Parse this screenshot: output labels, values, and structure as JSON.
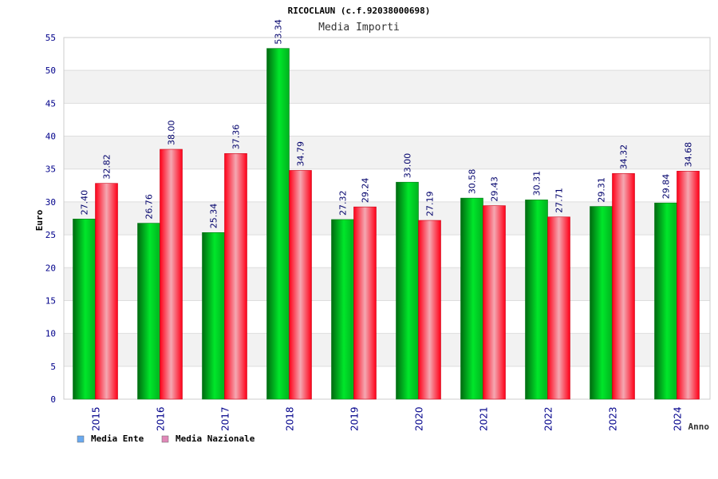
{
  "chart_data": {
    "type": "bar",
    "title": "RICOCLAUN (c.f.92038000698)",
    "subtitle": "Media Importi",
    "xlabel": "Anno",
    "ylabel": "Euro",
    "ylim": [
      0,
      55
    ],
    "yticks": [
      "0",
      "5",
      "10",
      "15",
      "20",
      "25",
      "30",
      "35",
      "40",
      "45",
      "50",
      "55"
    ],
    "categories": [
      "2015",
      "2016",
      "2017",
      "2018",
      "2019",
      "2020",
      "2021",
      "2022",
      "2023",
      "2024"
    ],
    "series": [
      {
        "name": "Media Ente",
        "values": [
          27.4,
          26.76,
          25.34,
          53.34,
          27.32,
          33.0,
          30.58,
          30.31,
          29.31,
          29.84
        ],
        "labels": [
          "27.40",
          "26.76",
          "25.34",
          "53.34",
          "27.32",
          "33.00",
          "30.58",
          "30.31",
          "29.31",
          "29.84"
        ],
        "color": "#00cc22"
      },
      {
        "name": "Media Nazionale",
        "values": [
          32.82,
          38.0,
          37.36,
          34.79,
          29.24,
          27.19,
          29.43,
          27.71,
          34.32,
          34.68
        ],
        "labels": [
          "32.82",
          "38.00",
          "37.36",
          "34.79",
          "29.24",
          "27.19",
          "29.43",
          "27.71",
          "34.32",
          "34.68"
        ],
        "color": "#ff1a2a"
      }
    ],
    "legend": [
      {
        "label": "Media Ente",
        "color": "#6aaaf0"
      },
      {
        "label": "Media Nazionale",
        "color": "#e088b8"
      }
    ],
    "legend_position": "bottom-left",
    "grid": true,
    "band_color": "#f2f2f2",
    "axis_text_color": "#00008b"
  }
}
